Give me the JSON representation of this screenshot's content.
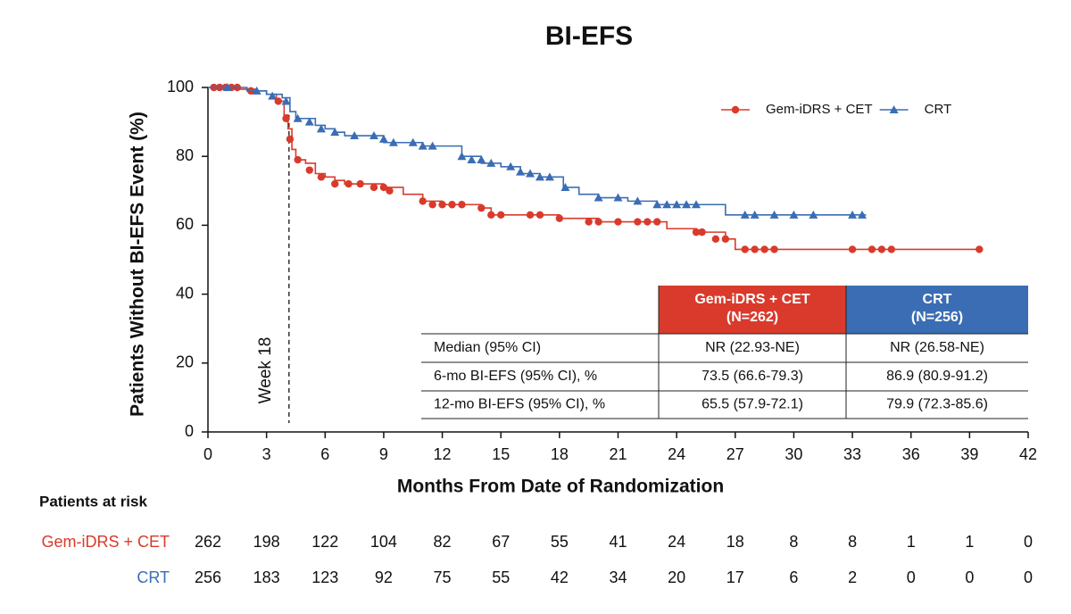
{
  "chart_data": {
    "type": "km",
    "title": "BI-EFS",
    "x_label": "Months From Date of Randomization",
    "y_label": "Patients Without BI-EFS Event (%)",
    "xlim": [
      0,
      42
    ],
    "ylim": [
      0,
      100
    ],
    "xticks": [
      0,
      3,
      6,
      9,
      12,
      15,
      18,
      21,
      24,
      27,
      30,
      33,
      36,
      39,
      42
    ],
    "yticks": [
      0,
      20,
      40,
      60,
      80,
      100
    ],
    "legend": "upper right",
    "annotation": {
      "text": "Week 18",
      "x": 4.15
    },
    "series": [
      {
        "name": "Gem-iDRS + CET",
        "color": "#d93a2b",
        "marker": "circle",
        "x": [
          0,
          1.5,
          2.5,
          3,
          3.5,
          3.9,
          4.1,
          4.3,
          4.5,
          5,
          5.5,
          6,
          6.5,
          7,
          9,
          10,
          11,
          12,
          14,
          14.5,
          18,
          20,
          23.5,
          25,
          26.5,
          27,
          39.5
        ],
        "values": [
          100,
          99.5,
          99,
          98,
          96,
          92,
          88,
          82,
          79,
          78,
          75,
          74,
          73,
          72,
          71,
          69,
          67,
          66,
          65,
          63,
          62,
          61,
          59,
          58,
          56,
          53,
          53
        ],
        "censor_x": [
          0.3,
          0.6,
          0.9,
          1.2,
          1.5,
          2.2,
          3.6,
          4,
          4.2,
          4.6,
          5.2,
          5.8,
          6.5,
          7.2,
          7.8,
          8.5,
          9,
          9.3,
          11,
          11.5,
          12,
          12.5,
          13,
          14,
          14.5,
          15,
          16.5,
          17,
          18,
          19.5,
          20,
          21,
          22,
          22.5,
          23,
          25,
          25.3,
          26,
          26.5,
          27.5,
          28,
          28.5,
          29,
          33,
          34,
          34.5,
          35,
          39.5
        ],
        "censor_values": [
          100,
          100,
          100,
          100,
          100,
          99,
          96,
          91,
          85,
          79,
          76,
          74,
          72,
          72,
          72,
          71,
          71,
          70,
          67,
          66,
          66,
          66,
          66,
          65,
          63,
          63,
          63,
          63,
          62,
          61,
          61,
          61,
          61,
          61,
          61,
          58,
          58,
          56,
          56,
          53,
          53,
          53,
          53,
          53,
          53,
          53,
          53,
          53
        ]
      },
      {
        "name": "CRT",
        "color": "#3a6db4",
        "marker": "triangle",
        "x": [
          0,
          2,
          3,
          3.8,
          4.2,
          4.5,
          5.5,
          6,
          6.5,
          7,
          9,
          11,
          13,
          14,
          15,
          16,
          17,
          18.2,
          19,
          20,
          21.5,
          23,
          26.5,
          33.7
        ],
        "values": [
          100,
          99,
          98,
          97,
          93,
          91,
          89,
          88,
          87,
          86,
          84,
          83,
          80,
          78,
          77,
          75,
          74,
          71,
          69,
          68,
          67,
          66,
          63,
          63
        ],
        "censor_x": [
          1,
          2.5,
          3.3,
          4,
          4.6,
          5.2,
          5.8,
          6.5,
          7.5,
          8.5,
          9,
          9.5,
          10.5,
          11,
          11.5,
          13,
          13.5,
          14,
          14.5,
          15.5,
          16,
          16.5,
          17,
          17.5,
          18.3,
          20,
          21,
          22,
          23,
          23.5,
          24,
          24.5,
          25,
          27.5,
          28,
          29,
          30,
          31,
          33,
          33.5
        ],
        "censor_values": [
          100,
          99,
          97.5,
          96,
          91,
          90,
          88,
          87,
          86,
          86,
          85,
          84,
          84,
          83,
          83,
          80,
          79,
          79,
          78,
          77,
          75.5,
          75,
          74,
          74,
          71,
          68,
          68,
          67,
          66,
          66,
          66,
          66,
          66,
          63,
          63,
          63,
          63,
          63,
          63,
          63
        ]
      }
    ],
    "table": {
      "headers": [
        [
          "Gem-iDRS + CET",
          "(N=262)"
        ],
        [
          "CRT",
          "(N=256)"
        ]
      ],
      "rows": [
        [
          "Median (95% CI)",
          "NR (22.93-NE)",
          "NR (26.58-NE)"
        ],
        [
          "6-mo BI-EFS (95% CI), %",
          "73.5 (66.6-79.3)",
          "86.9 (80.9-91.2)"
        ],
        [
          "12-mo BI-EFS (95% CI), %",
          "65.5 (57.9-72.1)",
          "79.9 (72.3-85.6)"
        ]
      ]
    },
    "risk_table": {
      "title": "Patients at risk",
      "rows": [
        [
          262,
          198,
          122,
          104,
          82,
          67,
          55,
          41,
          24,
          18,
          8,
          8,
          1,
          1,
          0
        ],
        [
          256,
          183,
          123,
          92,
          75,
          55,
          42,
          34,
          20,
          17,
          6,
          2,
          0,
          0,
          0
        ]
      ]
    }
  }
}
